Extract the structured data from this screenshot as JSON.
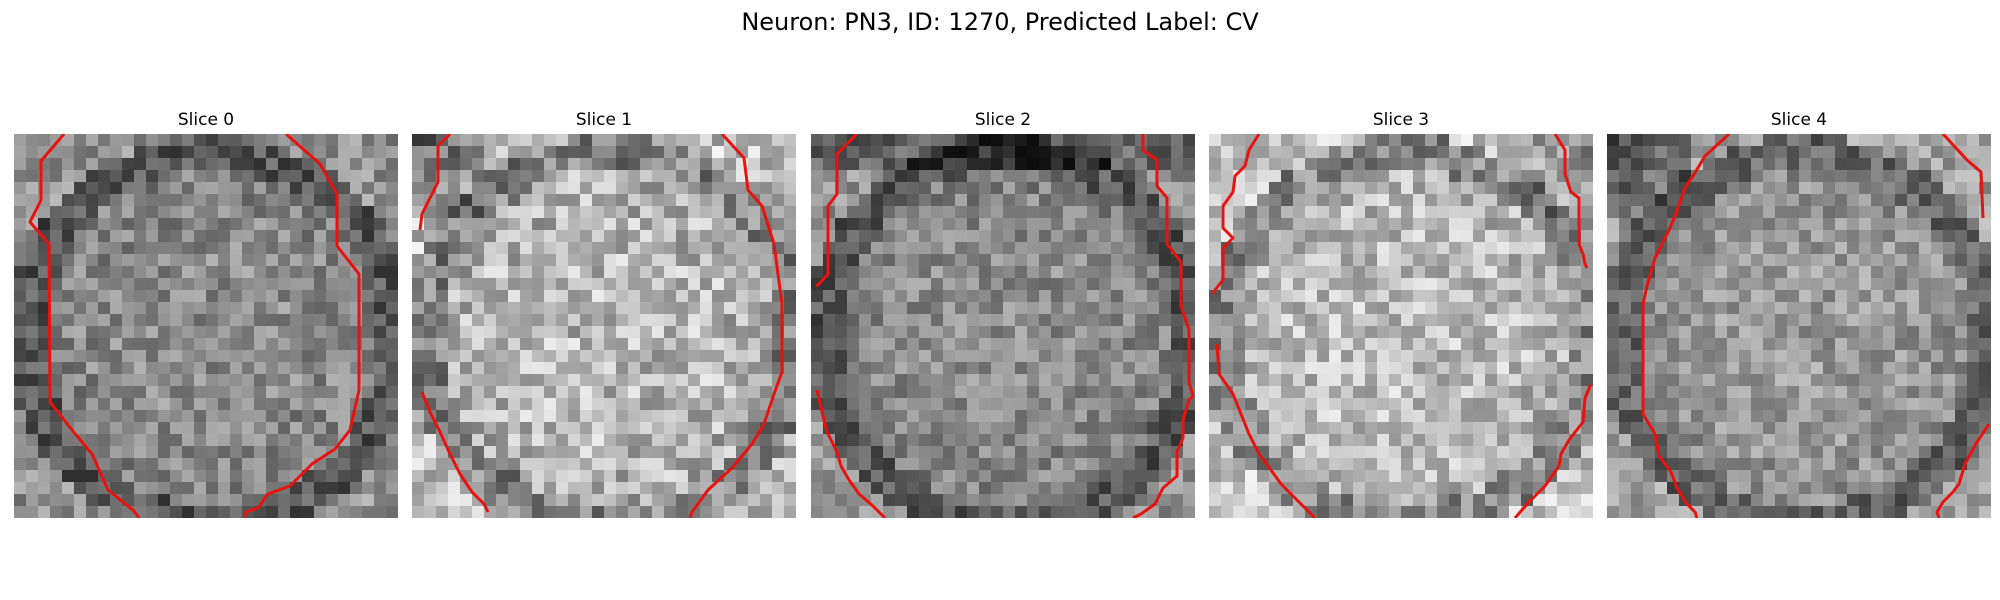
{
  "figure": {
    "title": "Neuron: PN3, ID: 1270, Predicted Label: CV"
  },
  "slices": [
    {
      "title": "Slice 0",
      "bright": 0.55,
      "contrast": 0.32,
      "dark_corner": "none"
    },
    {
      "title": "Slice 1",
      "bright": 0.72,
      "contrast": 0.42,
      "dark_corner": "top-left"
    },
    {
      "title": "Slice 2",
      "bright": 0.55,
      "contrast": 0.3,
      "dark_corner": "top"
    },
    {
      "title": "Slice 3",
      "bright": 0.74,
      "contrast": 0.38,
      "dark_corner": "top-right"
    },
    {
      "title": "Slice 4",
      "bright": 0.6,
      "contrast": 0.3,
      "dark_corner": "top-left"
    }
  ],
  "colors": {
    "contour": "#e8130f",
    "background": "#ffffff"
  }
}
